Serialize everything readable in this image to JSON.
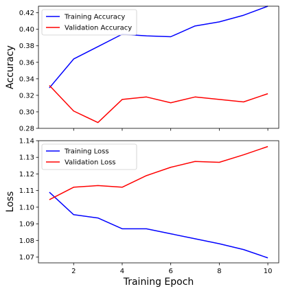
{
  "chart_data": [
    {
      "type": "line",
      "title": "",
      "xlabel": "",
      "ylabel": "Accuracy",
      "x": [
        1,
        2,
        3,
        4,
        5,
        6,
        7,
        8,
        9,
        10
      ],
      "xlim": [
        0.55,
        10.45
      ],
      "ylim": [
        0.28,
        0.428
      ],
      "xticks": [
        2,
        4,
        6,
        8,
        10
      ],
      "yticks": [
        0.28,
        0.3,
        0.32,
        0.34,
        0.36,
        0.38,
        0.4,
        0.42
      ],
      "ytick_labels": [
        "0.28",
        "0.30",
        "0.32",
        "0.34",
        "0.36",
        "0.38",
        "0.40",
        "0.42"
      ],
      "show_xtick_labels": false,
      "legend_position": "upper-left",
      "grid": false,
      "series": [
        {
          "name": "Training Accuracy",
          "color": "#0000ff",
          "values": [
            0.329,
            0.364,
            0.379,
            0.394,
            0.392,
            0.391,
            0.404,
            0.409,
            0.417,
            0.428
          ]
        },
        {
          "name": "Validation Accuracy",
          "color": "#ff0000",
          "values": [
            0.332,
            0.301,
            0.287,
            0.315,
            0.318,
            0.311,
            0.318,
            0.315,
            0.312,
            0.322
          ]
        }
      ]
    },
    {
      "type": "line",
      "title": "",
      "xlabel": "Training Epoch",
      "ylabel": "Loss",
      "x": [
        1,
        2,
        3,
        4,
        5,
        6,
        7,
        8,
        9,
        10
      ],
      "xlim": [
        0.55,
        10.45
      ],
      "ylim": [
        1.0665,
        1.14
      ],
      "xticks": [
        2,
        4,
        6,
        8,
        10
      ],
      "xtick_labels": [
        "2",
        "4",
        "6",
        "8",
        "10"
      ],
      "yticks": [
        1.07,
        1.08,
        1.09,
        1.1,
        1.11,
        1.12,
        1.13,
        1.14
      ],
      "ytick_labels": [
        "1.07",
        "1.08",
        "1.09",
        "1.10",
        "1.11",
        "1.12",
        "1.13",
        "1.14"
      ],
      "show_xtick_labels": true,
      "legend_position": "upper-left",
      "grid": false,
      "series": [
        {
          "name": "Training Loss",
          "color": "#0000ff",
          "values": [
            1.109,
            1.0955,
            1.0935,
            1.087,
            1.087,
            1.084,
            1.081,
            1.078,
            1.0745,
            1.0695
          ]
        },
        {
          "name": "Validation Loss",
          "color": "#ff0000",
          "values": [
            1.1045,
            1.112,
            1.113,
            1.112,
            1.119,
            1.124,
            1.1275,
            1.127,
            1.1315,
            1.1365
          ]
        }
      ]
    }
  ]
}
